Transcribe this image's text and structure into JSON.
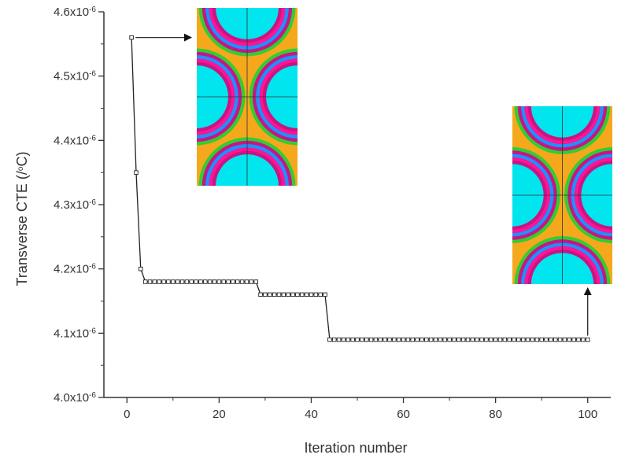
{
  "chart_data": {
    "type": "scatter",
    "title": "",
    "xlabel": "Iteration number",
    "ylabel_main": "Transverse CTE (/",
    "ylabel_sup": "o",
    "ylabel_end": "C)",
    "xlim": [
      -5,
      105
    ],
    "ylim": [
      4e-06,
      4.6e-06
    ],
    "x_ticks": [
      0,
      20,
      40,
      60,
      80,
      100
    ],
    "x_tick_labels": [
      "0",
      "20",
      "40",
      "60",
      "80",
      "100"
    ],
    "y_ticks": [
      4e-06,
      4.1e-06,
      4.2e-06,
      4.3e-06,
      4.4e-06,
      4.5e-06,
      4.6e-06
    ],
    "y_tick_labels": [
      {
        "base": "4.0x10",
        "exp": "-6"
      },
      {
        "base": "4.1x10",
        "exp": "-6"
      },
      {
        "base": "4.2x10",
        "exp": "-6"
      },
      {
        "base": "4.3x10",
        "exp": "-6"
      },
      {
        "base": "4.4x10",
        "exp": "-6"
      },
      {
        "base": "4.5x10",
        "exp": "-6"
      },
      {
        "base": "4.6x10",
        "exp": "-6"
      }
    ],
    "grid": false,
    "legend": "none",
    "series": [
      {
        "marker": "open-square",
        "line": true,
        "segments": [
          {
            "x_from": 1,
            "x_to": 1,
            "y": 4.56e-06
          },
          {
            "x_from": 2,
            "x_to": 2,
            "y": 4.35e-06
          },
          {
            "x_from": 3,
            "x_to": 3,
            "y": 4.2e-06
          },
          {
            "x_from": 4,
            "x_to": 28,
            "y": 4.18e-06
          },
          {
            "x_from": 29,
            "x_to": 43,
            "y": 4.16e-06
          },
          {
            "x_from": 44,
            "x_to": 100,
            "y": 4.09e-06
          }
        ]
      }
    ],
    "annotations": [
      {
        "type": "arrow",
        "from": [
          1,
          4.56e-06
        ],
        "direction": "right",
        "target": "inset-initial"
      },
      {
        "type": "arrow",
        "from": [
          100,
          4.09e-06
        ],
        "direction": "up",
        "target": "inset-final"
      }
    ],
    "insets": [
      {
        "name": "initial-microstructure",
        "colors": {
          "matrix": "#f5a81c",
          "fiber": "#00e5ee",
          "ring_a": "#1e90ff",
          "ring_b": "#ff1493",
          "ring_c": "#c71585",
          "outer": "#33cc33",
          "line": "#333333"
        }
      },
      {
        "name": "final-microstructure",
        "colors": {
          "matrix": "#f5a81c",
          "fiber": "#00e5ee",
          "ring_a": "#1e90ff",
          "ring_b": "#ff1493",
          "ring_c": "#c71585",
          "outer": "#33cc33",
          "line": "#333333"
        }
      }
    ],
    "colors": {
      "axis": "#333333",
      "series": "#222222",
      "marker_fill": "#ffffff"
    }
  }
}
